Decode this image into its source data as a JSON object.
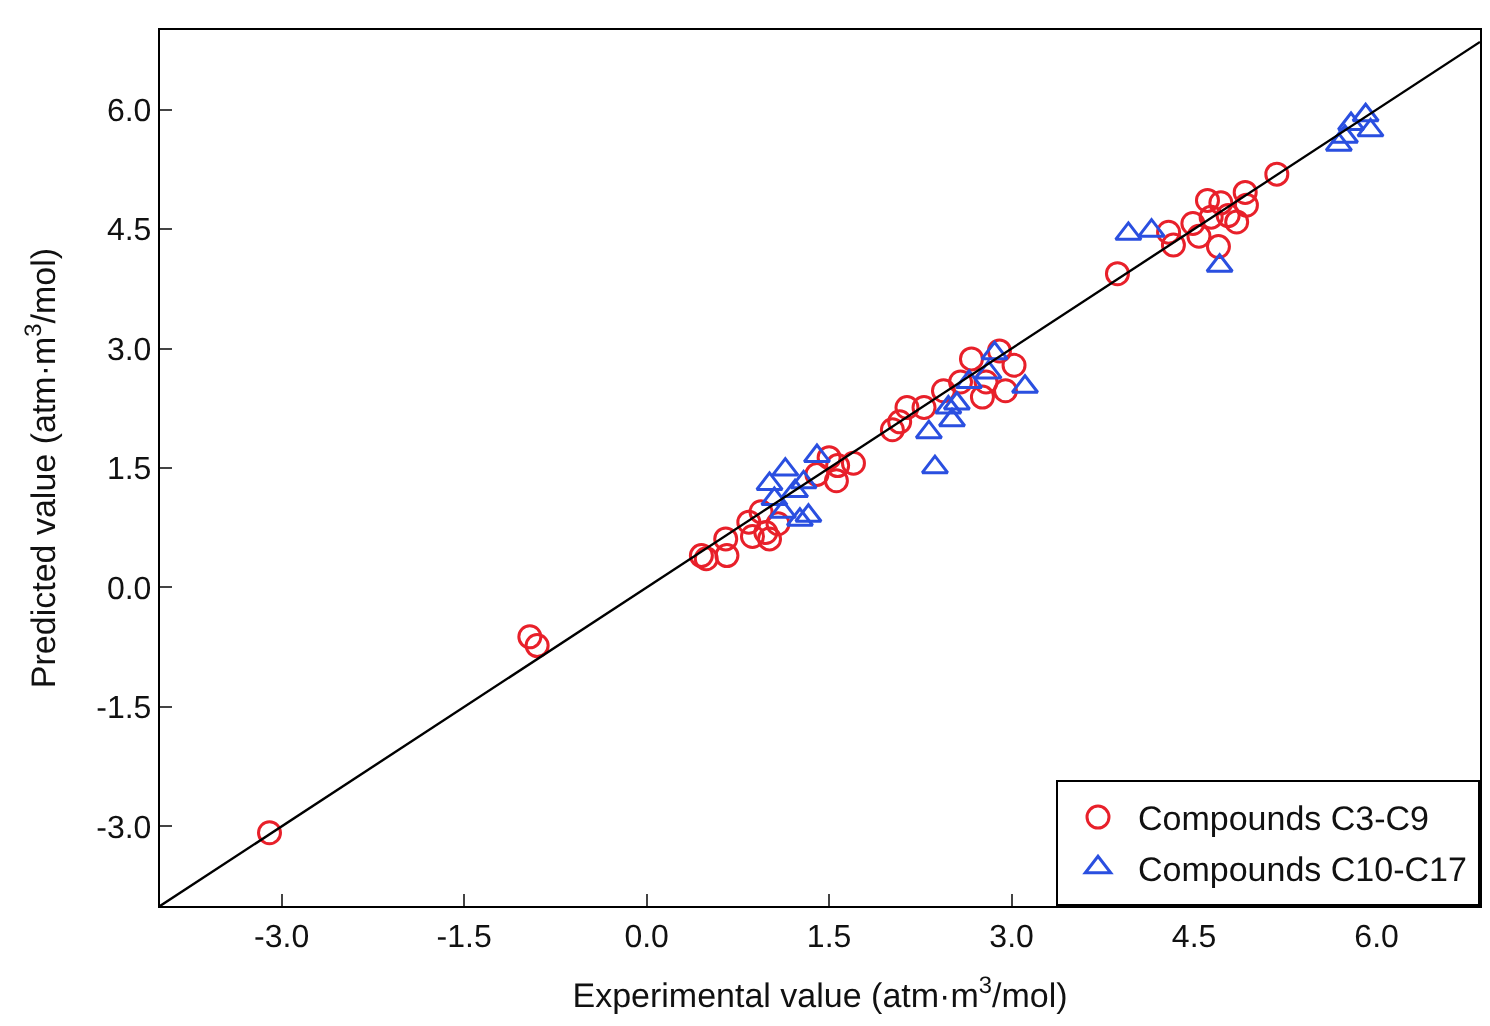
{
  "chart_data": {
    "type": "scatter",
    "xlabel": "Experimental value (atm·m$^{3}$/mol)",
    "ylabel": "Predicted value (atm·m$^{3}$/mol)",
    "xlim": [
      -4.0,
      6.85
    ],
    "ylim": [
      -4.0,
      7.0
    ],
    "xticks": [
      {
        "value": -3,
        "label": "-3.0"
      },
      {
        "value": -1.5,
        "label": "-1.5"
      },
      {
        "value": 0,
        "label": "0.0"
      },
      {
        "value": 1.5,
        "label": "1.5"
      },
      {
        "value": 3,
        "label": "3.0"
      },
      {
        "value": 4.5,
        "label": "4.5"
      },
      {
        "value": 6,
        "label": "6.0"
      }
    ],
    "yticks": [
      {
        "value": -3,
        "label": "-3.0"
      },
      {
        "value": -1.5,
        "label": "-1.5"
      },
      {
        "value": 0,
        "label": "0.0"
      },
      {
        "value": 1.5,
        "label": "1.5"
      },
      {
        "value": 3,
        "label": "3.0"
      },
      {
        "value": 4.5,
        "label": "4.5"
      },
      {
        "value": 6,
        "label": "6.0"
      }
    ],
    "grid": false,
    "legend": "bottom right",
    "series": [
      {
        "name": "Compounds C3-C9",
        "color": "#e8202a",
        "marker": "circle",
        "x": [
          -3.1,
          -0.96,
          -0.9,
          0.45,
          0.49,
          0.65,
          0.66,
          0.84,
          0.87,
          0.98,
          1.01,
          0.94,
          1.08,
          1.4,
          1.5,
          1.56,
          1.7,
          1.57,
          2.02,
          2.08,
          2.14,
          2.28,
          2.44,
          2.58,
          2.67,
          2.76,
          2.79,
          2.9,
          2.95,
          3.02,
          3.87,
          4.33,
          4.29,
          4.49,
          4.54,
          4.61,
          4.64,
          4.7,
          4.72,
          4.78,
          4.85,
          4.92,
          4.93,
          5.18
        ],
        "values": [
          -3.08,
          -0.62,
          -0.73,
          0.4,
          0.36,
          0.61,
          0.4,
          0.82,
          0.64,
          0.69,
          0.61,
          0.95,
          0.8,
          1.42,
          1.63,
          1.34,
          1.56,
          1.53,
          1.98,
          2.08,
          2.26,
          2.26,
          2.47,
          2.58,
          2.87,
          2.39,
          2.58,
          2.97,
          2.47,
          2.79,
          3.94,
          4.3,
          4.46,
          4.57,
          4.41,
          4.86,
          4.65,
          4.28,
          4.83,
          4.67,
          4.59,
          4.96,
          4.8,
          5.19
        ]
      },
      {
        "name": "Compounds C10-C17",
        "color": "#2a4fe0",
        "marker": "triangle",
        "x": [
          1.01,
          1.14,
          1.05,
          1.12,
          1.22,
          1.29,
          1.26,
          1.33,
          1.4,
          2.32,
          2.37,
          2.48,
          2.51,
          2.55,
          2.65,
          2.81,
          2.86,
          3.11,
          3.96,
          4.15,
          4.71,
          5.69,
          5.74,
          5.79,
          5.91,
          5.95
        ],
        "values": [
          1.3,
          1.48,
          1.11,
          0.95,
          1.21,
          1.32,
          0.85,
          0.9,
          1.65,
          1.95,
          1.51,
          2.26,
          2.1,
          2.31,
          2.58,
          2.7,
          2.94,
          2.52,
          4.44,
          4.48,
          4.04,
          5.56,
          5.66,
          5.82,
          5.93,
          5.74
        ]
      },
      {
        "type": "line",
        "color": "#000000",
        "marker": "none",
        "x": [
          -4.0,
          6.85
        ],
        "values": [
          -4.0,
          6.85
        ]
      }
    ]
  }
}
